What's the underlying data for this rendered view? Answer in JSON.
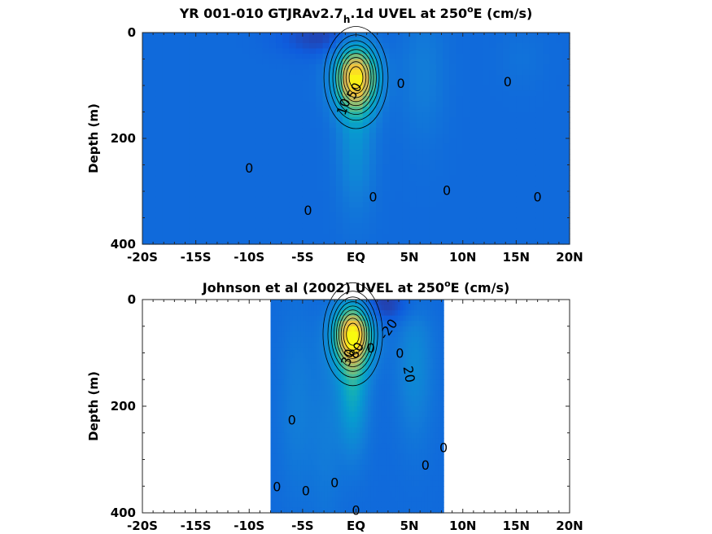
{
  "chart_data": [
    {
      "type": "contour",
      "title": "YR 001-010 GTJRAv2.7_h.1d UVEL at 250°E (cm/s)",
      "title_parts": {
        "pre": "YR 001-010 GTJRAv2.7",
        "sub": "h",
        "mid": ".1d UVEL at 250",
        "sup": "o",
        "post": "E (cm/s)"
      },
      "ylabel": "Depth (m)",
      "xlabel": "",
      "xlim": [
        -20,
        20
      ],
      "ylim": [
        400,
        0
      ],
      "y_reversed": true,
      "xticks": [
        -20,
        -15,
        -10,
        -5,
        0,
        5,
        10,
        15,
        20
      ],
      "xtick_labels": [
        "-20S",
        "-15S",
        "-10S",
        "-5S",
        "EQ",
        "5N",
        "10N",
        "15N",
        "20N"
      ],
      "yticks": [
        0,
        200,
        400
      ],
      "ytick_labels": [
        "0",
        "200",
        "400"
      ],
      "data_extent": [
        -20,
        20
      ],
      "colormap": "parula",
      "features": [
        {
          "kind": "jet",
          "lat": 0,
          "depth": 85,
          "lat_width": 1.4,
          "depth_width": 45,
          "value": 100
        },
        {
          "kind": "positive_band",
          "lat": 0,
          "depth": 200,
          "lat_width": 1.2,
          "depth_width": 90,
          "value": 25
        },
        {
          "kind": "negative_surface",
          "lat": -3,
          "depth": 10,
          "lat_width": 3,
          "depth_width": 25,
          "value": -20
        },
        {
          "kind": "positive_band",
          "lat": 6.3,
          "depth": 80,
          "lat_width": 1.5,
          "depth_width": 90,
          "value": 12
        },
        {
          "kind": "positive_band",
          "lat": 15.5,
          "depth": 50,
          "lat_width": 1.5,
          "depth_width": 40,
          "value": 5
        }
      ],
      "contour_labels": [
        {
          "text": "0",
          "lat": -10,
          "depth": 255,
          "angle": 0
        },
        {
          "text": "0",
          "lat": -4.5,
          "depth": 335,
          "angle": 0
        },
        {
          "text": "0",
          "lat": 4.2,
          "depth": 95,
          "angle": 0
        },
        {
          "text": "0",
          "lat": 1.6,
          "depth": 310,
          "angle": 0
        },
        {
          "text": "0",
          "lat": 8.5,
          "depth": 298,
          "angle": 0
        },
        {
          "text": "0",
          "lat": 14.2,
          "depth": 92,
          "angle": 0
        },
        {
          "text": "0",
          "lat": 17,
          "depth": 310,
          "angle": 0
        },
        {
          "text": "10",
          "lat": -1.2,
          "depth": 140,
          "angle": -70
        },
        {
          "text": "50",
          "lat": -0.2,
          "depth": 110,
          "angle": -60
        }
      ],
      "contour_levels": [
        0,
        10,
        20,
        30,
        40,
        50,
        60,
        70,
        80,
        90,
        100
      ]
    },
    {
      "type": "contour",
      "title": "Johnson et al (2002) UVEL at 250°E (cm/s)",
      "title_parts": {
        "pre": "Johnson et al (2002) UVEL at 250",
        "sub": "",
        "mid": "",
        "sup": "o",
        "post": "E (cm/s)"
      },
      "ylabel": "Depth (m)",
      "xlabel": "",
      "xlim": [
        -20,
        20
      ],
      "ylim": [
        400,
        0
      ],
      "y_reversed": true,
      "xticks": [
        -20,
        -15,
        -10,
        -5,
        0,
        5,
        10,
        15,
        20
      ],
      "xtick_labels": [
        "-20S",
        "-15S",
        "-10S",
        "-5S",
        "EQ",
        "5N",
        "10N",
        "15N",
        "20N"
      ],
      "yticks": [
        0,
        200,
        400
      ],
      "ytick_labels": [
        "0",
        "200",
        "400"
      ],
      "data_extent": [
        -8,
        8.2
      ],
      "colormap": "parula",
      "features": [
        {
          "kind": "jet",
          "lat": -0.3,
          "depth": 65,
          "lat_width": 1.3,
          "depth_width": 45,
          "value": 100
        },
        {
          "kind": "positive_band",
          "lat": -0.3,
          "depth": 170,
          "lat_width": 1.0,
          "depth_width": 80,
          "value": 40
        },
        {
          "kind": "negative_surface",
          "lat": 2,
          "depth": 10,
          "lat_width": 2.5,
          "depth_width": 25,
          "value": -25
        },
        {
          "kind": "positive_band",
          "lat": 5.5,
          "depth": 120,
          "lat_width": 1.2,
          "depth_width": 100,
          "value": 20
        },
        {
          "kind": "positive_band",
          "lat": -5.5,
          "depth": 200,
          "lat_width": 1.2,
          "depth_width": 120,
          "value": 12
        },
        {
          "kind": "positive_band",
          "lat": -2.8,
          "depth": 260,
          "lat_width": 1.0,
          "depth_width": 120,
          "value": 10
        }
      ],
      "contour_labels": [
        {
          "text": "0",
          "lat": -6,
          "depth": 225,
          "angle": 0
        },
        {
          "text": "0",
          "lat": -7.4,
          "depth": 350,
          "angle": 0
        },
        {
          "text": "0",
          "lat": -4.7,
          "depth": 358,
          "angle": 0
        },
        {
          "text": "0",
          "lat": -2,
          "depth": 343,
          "angle": 0
        },
        {
          "text": "0",
          "lat": 0,
          "depth": 395,
          "angle": 0
        },
        {
          "text": "0",
          "lat": 1.4,
          "depth": 90,
          "angle": 0
        },
        {
          "text": "0",
          "lat": 4.1,
          "depth": 100,
          "angle": 0
        },
        {
          "text": "0",
          "lat": 6.5,
          "depth": 310,
          "angle": 0
        },
        {
          "text": "0",
          "lat": 8.2,
          "depth": 277,
          "angle": 0
        },
        {
          "text": "20",
          "lat": 5,
          "depth": 140,
          "angle": 80
        },
        {
          "text": "-20",
          "lat": 3,
          "depth": 55,
          "angle": -55
        },
        {
          "text": "30",
          "lat": -0.8,
          "depth": 108,
          "angle": -70
        },
        {
          "text": "80",
          "lat": 0,
          "depth": 95,
          "angle": -60
        }
      ],
      "contour_levels": [
        0,
        10,
        20,
        30,
        40,
        50,
        60,
        70,
        80,
        90,
        100
      ]
    }
  ]
}
